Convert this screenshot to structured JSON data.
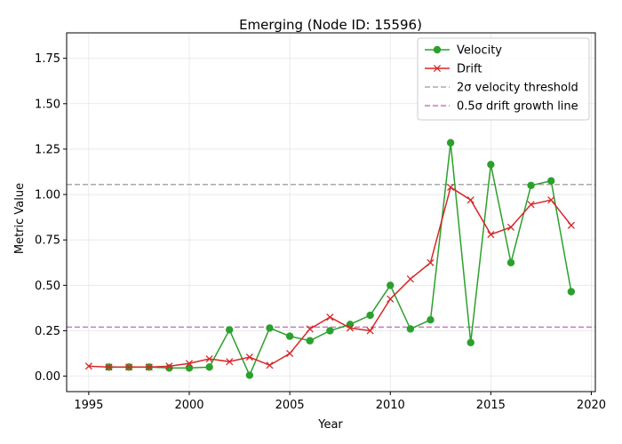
{
  "chart_data": {
    "type": "line",
    "title": "Emerging (Node ID: 15596)",
    "xlabel": "Year",
    "ylabel": "Metric Value",
    "xlim": [
      1993.9,
      2020.2
    ],
    "ylim": [
      -0.085,
      1.89
    ],
    "xticks": [
      1995,
      2000,
      2005,
      2010,
      2015,
      2020
    ],
    "yticks": [
      0.0,
      0.25,
      0.5,
      0.75,
      1.0,
      1.25,
      1.5,
      1.75
    ],
    "ytick_labels": [
      "0.00",
      "0.25",
      "0.50",
      "0.75",
      "1.00",
      "1.25",
      "1.50",
      "1.75"
    ],
    "grid": true,
    "legend_position": "top-right",
    "series": [
      {
        "name": "Velocity",
        "color": "#2ca02c",
        "marker": "circle",
        "x": [
          1996,
          1997,
          1998,
          1999,
          2000,
          2001,
          2002,
          2003,
          2004,
          2005,
          2006,
          2007,
          2008,
          2009,
          2010,
          2011,
          2012,
          2013,
          2014,
          2015,
          2016,
          2017,
          2018,
          2019
        ],
        "y": [
          0.05,
          0.05,
          0.05,
          0.045,
          0.045,
          0.05,
          0.255,
          0.005,
          0.265,
          0.22,
          0.195,
          0.25,
          0.285,
          0.335,
          0.5,
          0.26,
          0.31,
          1.285,
          0.185,
          1.165,
          0.625,
          1.05,
          1.075,
          0.465
        ]
      },
      {
        "name": "Drift",
        "color": "#d62728",
        "marker": "x",
        "x": [
          1995,
          1996,
          1997,
          1998,
          1999,
          2000,
          2001,
          2002,
          2003,
          2004,
          2005,
          2006,
          2007,
          2008,
          2009,
          2010,
          2011,
          2012,
          2013,
          2014,
          2015,
          2016,
          2017,
          2018,
          2019
        ],
        "y": [
          0.055,
          0.05,
          0.05,
          0.05,
          0.055,
          0.07,
          0.095,
          0.08,
          0.105,
          0.06,
          0.125,
          0.26,
          0.325,
          0.265,
          0.25,
          0.425,
          0.535,
          0.625,
          1.04,
          0.97,
          0.78,
          0.82,
          0.945,
          0.97,
          0.83
        ]
      }
    ],
    "reference_lines": [
      {
        "name": "2σ velocity threshold",
        "y": 1.055,
        "color": "#a9a9a9",
        "style": "dashed"
      },
      {
        "name": "0.5σ drift growth line",
        "y": 0.27,
        "color": "#c879c0",
        "style": "dashed"
      }
    ]
  }
}
